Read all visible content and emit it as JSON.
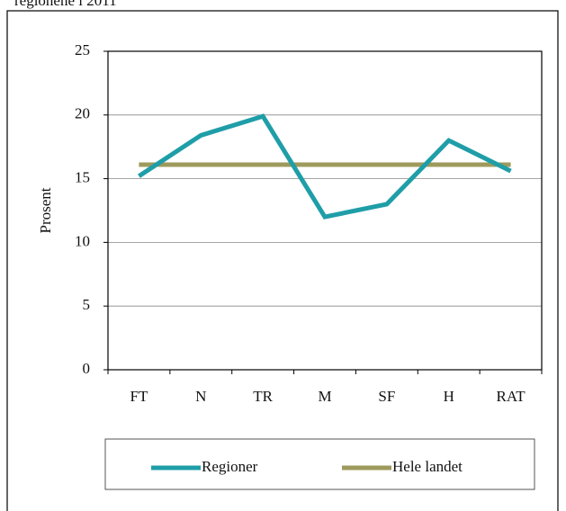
{
  "chart_data": {
    "type": "line",
    "title": "regionene i 2011",
    "ylabel": "Prosent",
    "categories": [
      "FT",
      "N",
      "TR",
      "M",
      "SF",
      "H",
      "RAT"
    ],
    "series": [
      {
        "name": "Regioner",
        "color": "#1f9ea8",
        "values": [
          15.2,
          18.4,
          19.9,
          12.0,
          13.0,
          18.0,
          15.6
        ]
      },
      {
        "name": "Hele landet",
        "color": "#9e9a5c",
        "values": [
          16.1,
          16.1,
          16.1,
          16.1,
          16.1,
          16.1,
          16.1
        ]
      }
    ],
    "ylim": [
      0,
      25
    ],
    "yticks": [
      0,
      5,
      10,
      15,
      20,
      25
    ],
    "grid": true,
    "legend": "bottom"
  }
}
